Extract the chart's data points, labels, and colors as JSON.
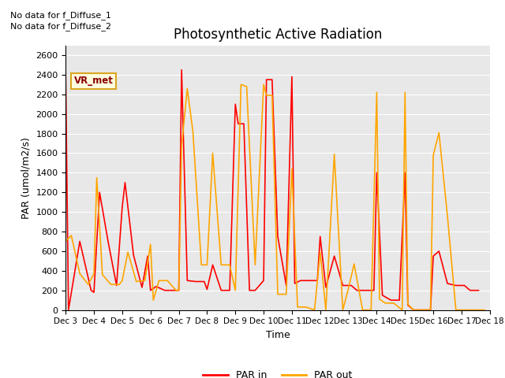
{
  "title": "Photosynthetic Active Radiation",
  "ylabel": "PAR (umol/m2/s)",
  "xlabel": "Time",
  "ylim": [
    0,
    2700
  ],
  "yticks": [
    0,
    200,
    400,
    600,
    800,
    1000,
    1200,
    1400,
    1600,
    1800,
    2000,
    2200,
    2400,
    2600
  ],
  "annotations": [
    "No data for f_Diffuse_1",
    "No data for f_Diffuse_2"
  ],
  "legend_label_box": "VR_met",
  "legend_entries": [
    "PAR in",
    "PAR out"
  ],
  "par_in_color": "#FF0000",
  "par_out_color": "#FFA500",
  "background_color": "#E8E8E8",
  "x_labels": [
    "Dec 3",
    "Dec 4",
    "Dec 5",
    "Dec 6",
    "Dec 7",
    "Dec 8",
    "Dec 9",
    "Dec 10",
    "Dec 11",
    "Dec 12",
    "Dec 13",
    "Dec 14",
    "Dec 15",
    "Dec 16",
    "Dec 17",
    "Dec 18"
  ],
  "par_in_x": [
    3.0,
    3.1,
    3.5,
    3.9,
    4.0,
    4.2,
    4.5,
    4.8,
    5.0,
    5.1,
    5.4,
    5.7,
    5.9,
    6.0,
    6.2,
    6.5,
    6.7,
    7.0,
    7.1,
    7.3,
    7.6,
    7.9,
    8.0,
    8.2,
    8.5,
    8.8,
    9.0,
    9.1,
    9.3,
    9.5,
    9.7,
    10.0,
    10.1,
    10.3,
    10.5,
    10.8,
    11.0,
    11.1,
    11.3,
    11.6,
    11.9,
    12.0,
    12.2,
    12.5,
    12.8,
    13.0,
    13.1,
    13.3,
    13.6,
    13.9,
    14.0,
    14.2,
    14.5,
    14.8,
    15.0,
    15.1,
    15.3,
    15.6,
    15.9,
    16.0,
    16.2,
    16.5,
    16.8,
    17.0,
    17.1,
    17.3,
    17.6
  ],
  "par_in_y": [
    2420,
    0,
    700,
    200,
    180,
    1200,
    700,
    250,
    1050,
    1300,
    560,
    230,
    550,
    200,
    240,
    200,
    200,
    200,
    2450,
    300,
    290,
    290,
    210,
    460,
    200,
    200,
    2100,
    1900,
    1900,
    200,
    200,
    300,
    2350,
    2350,
    750,
    250,
    2380,
    270,
    300,
    300,
    300,
    750,
    230,
    550,
    250,
    250,
    250,
    200,
    200,
    200,
    1400,
    150,
    100,
    100,
    1400,
    50,
    0,
    0,
    0,
    550,
    600,
    270,
    250,
    250,
    250,
    200,
    200
  ],
  "par_out_x": [
    3.0,
    3.2,
    3.5,
    3.8,
    4.0,
    4.1,
    4.3,
    4.6,
    4.9,
    5.0,
    5.2,
    5.5,
    5.8,
    6.0,
    6.1,
    6.3,
    6.6,
    6.9,
    7.0,
    7.1,
    7.3,
    7.5,
    7.8,
    8.0,
    8.2,
    8.5,
    8.8,
    9.0,
    9.2,
    9.4,
    9.7,
    10.0,
    10.1,
    10.3,
    10.5,
    10.8,
    11.0,
    11.2,
    11.5,
    11.8,
    12.0,
    12.2,
    12.5,
    12.8,
    13.0,
    13.2,
    13.5,
    13.8,
    14.0,
    14.1,
    14.3,
    14.6,
    14.9,
    15.0,
    15.1,
    15.3,
    15.6,
    15.9,
    16.0,
    16.2,
    16.5,
    16.8,
    17.0,
    17.2,
    17.5,
    17.8
  ],
  "par_out_y": [
    700,
    760,
    370,
    260,
    370,
    1350,
    360,
    260,
    260,
    300,
    590,
    290,
    300,
    670,
    100,
    300,
    300,
    200,
    200,
    1670,
    2260,
    1820,
    460,
    460,
    1600,
    460,
    460,
    200,
    2300,
    2280,
    460,
    2300,
    2190,
    2190,
    160,
    160,
    1440,
    30,
    30,
    0,
    590,
    0,
    1590,
    0,
    220,
    470,
    0,
    0,
    2220,
    110,
    70,
    70,
    0,
    2220,
    60,
    0,
    0,
    0,
    1580,
    1810,
    960,
    0,
    0,
    0,
    0,
    0
  ]
}
